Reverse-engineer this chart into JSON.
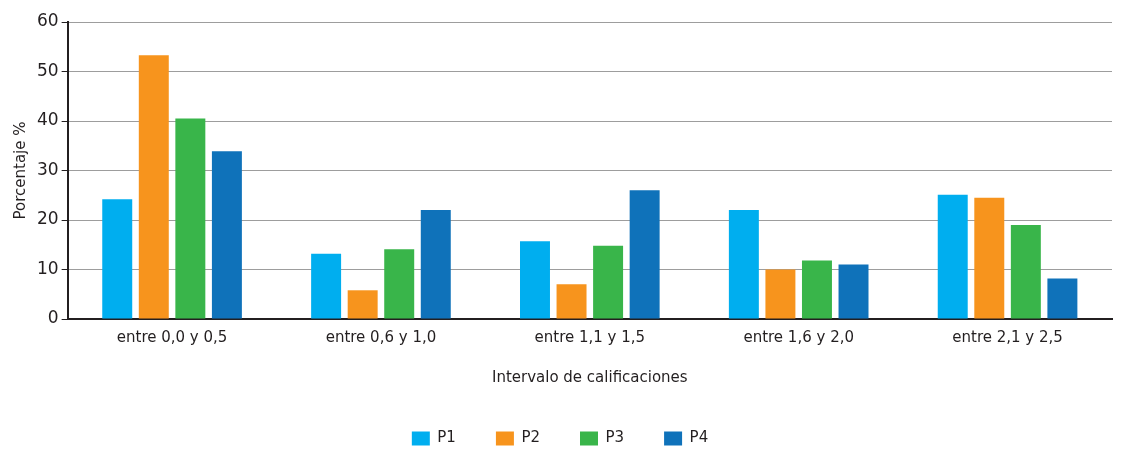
{
  "chart_data": {
    "type": "bar",
    "xlabel": "Intervalo de calificaciones",
    "ylabel": "Porcentaje %",
    "categories": [
      "entre 0,0 y 0,5",
      "entre 0,6 y 1,0",
      "entre 1,1 y 1,5",
      "entre 1,6 y 2,0",
      "entre 2,1 y 2,5"
    ],
    "series": [
      {
        "name": "P1",
        "color": "#00aeef",
        "values": [
          24.2,
          13.2,
          15.7,
          22.0,
          25.1
        ]
      },
      {
        "name": "P2",
        "color": "#f7941d",
        "values": [
          53.3,
          5.8,
          7.0,
          10.0,
          24.5
        ]
      },
      {
        "name": "P3",
        "color": "#39b54a",
        "values": [
          40.5,
          14.1,
          14.8,
          11.8,
          19.0
        ]
      },
      {
        "name": "P4",
        "color": "#0f72ba",
        "values": [
          33.9,
          22.0,
          26.0,
          11.0,
          8.2
        ]
      }
    ],
    "ylim": [
      0,
      60
    ],
    "yticks": [
      0,
      10,
      20,
      30,
      40,
      50,
      60
    ],
    "grid": "y",
    "legend": "bottom"
  }
}
